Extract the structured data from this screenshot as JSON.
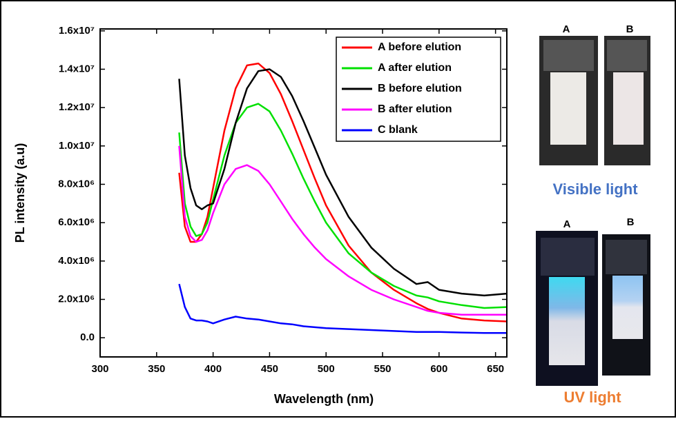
{
  "chart_data": {
    "type": "line",
    "x_label": "Wavelength (nm)",
    "y_label": "PL intensity (a.u)",
    "x": [
      370,
      375,
      380,
      385,
      390,
      395,
      400,
      410,
      420,
      430,
      440,
      450,
      460,
      470,
      480,
      490,
      500,
      520,
      540,
      560,
      580,
      590,
      600,
      620,
      640,
      660
    ],
    "series": [
      {
        "name": "A before elution",
        "color": "#ff0000",
        "values": [
          8600000,
          5800000,
          5000000,
          5000000,
          5400000,
          6300000,
          7800000,
          10800000,
          13000000,
          14200000,
          14300000,
          13800000,
          12700000,
          11300000,
          9800000,
          8300000,
          6900000,
          4800000,
          3400000,
          2500000,
          1800000,
          1500000,
          1300000,
          1000000,
          900000,
          850000
        ]
      },
      {
        "name": "A after elution",
        "color": "#00e000",
        "values": [
          10700000,
          7000000,
          5800000,
          5300000,
          5400000,
          6000000,
          7200000,
          9500000,
          11200000,
          12000000,
          12200000,
          11800000,
          10800000,
          9600000,
          8300000,
          7100000,
          6000000,
          4400000,
          3400000,
          2700000,
          2200000,
          2100000,
          1900000,
          1700000,
          1550000,
          1600000
        ]
      },
      {
        "name": "B before elution",
        "color": "#000000",
        "values": [
          13500000,
          9500000,
          7800000,
          6900000,
          6700000,
          6900000,
          7000000,
          8800000,
          11200000,
          13000000,
          13900000,
          14000000,
          13600000,
          12600000,
          11300000,
          9900000,
          8500000,
          6300000,
          4700000,
          3600000,
          2800000,
          2900000,
          2500000,
          2300000,
          2200000,
          2300000
        ]
      },
      {
        "name": "B after elution",
        "color": "#ff00ff",
        "values": [
          10000000,
          6300000,
          5300000,
          5000000,
          5100000,
          5600000,
          6500000,
          8000000,
          8800000,
          9000000,
          8700000,
          8000000,
          7100000,
          6200000,
          5400000,
          4700000,
          4100000,
          3200000,
          2500000,
          2000000,
          1600000,
          1400000,
          1300000,
          1200000,
          1200000,
          1200000
        ]
      },
      {
        "name": "C blank",
        "color": "#0000ff",
        "values": [
          2800000,
          1600000,
          1000000,
          900000,
          900000,
          850000,
          750000,
          950000,
          1100000,
          1000000,
          950000,
          850000,
          750000,
          700000,
          600000,
          550000,
          500000,
          450000,
          400000,
          350000,
          300000,
          300000,
          300000,
          270000,
          250000,
          250000
        ]
      }
    ],
    "xlim": [
      300,
      660
    ],
    "xticks": [
      300,
      350,
      400,
      450,
      500,
      550,
      600,
      650
    ],
    "ylim": [
      -1000000,
      16100000
    ],
    "yticks": [
      {
        "value": 0,
        "label": "0.0"
      },
      {
        "value": 2000000,
        "label": "2.0x10⁶"
      },
      {
        "value": 4000000,
        "label": "4.0x10⁶"
      },
      {
        "value": 6000000,
        "label": "6.0x10⁶"
      },
      {
        "value": 8000000,
        "label": "8.0x10⁶"
      },
      {
        "value": 10000000,
        "label": "1.0x10⁷"
      },
      {
        "value": 12000000,
        "label": "1.2x10⁷"
      },
      {
        "value": 14000000,
        "label": "1.4x10⁷"
      },
      {
        "value": 16000000,
        "label": "1.6x10⁷"
      }
    ],
    "legend": "upper right",
    "grid": false
  },
  "photos": [
    {
      "caption": "Visible light",
      "labels": [
        "A",
        "B"
      ]
    },
    {
      "caption": "UV light",
      "labels": [
        "A",
        "B"
      ]
    }
  ]
}
